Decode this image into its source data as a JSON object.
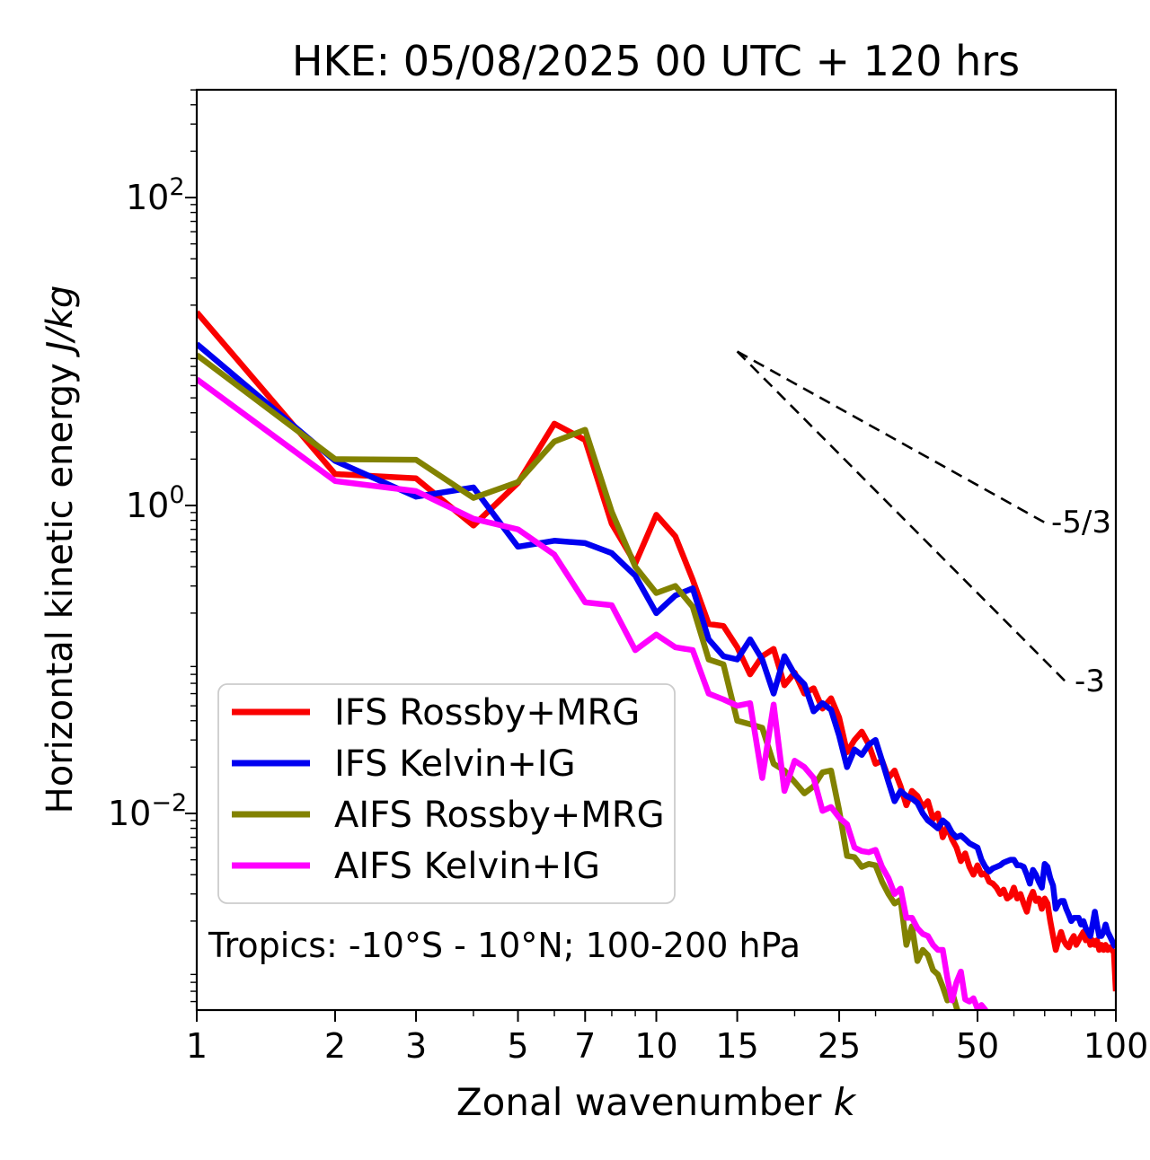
{
  "chart": {
    "title": "HKE: 05/08/2025 00 UTC + 120 hrs",
    "xlabel_text": "Zonal wavenumber ",
    "xlabel_var": "k",
    "ylabel_text": "Horizontal kinetic energy ",
    "ylabel_units": "J/kg",
    "annotation": "Tropics: -10°S - 10°N; 100-200 hPa"
  },
  "chart_data": {
    "type": "line",
    "x_scale": "log",
    "y_scale": "log",
    "xlim": [
      1,
      100
    ],
    "ylim": [
      0.00053,
      515
    ],
    "xlabel": "Zonal wavenumber k",
    "ylabel": "Horizontal kinetic energy J/kg",
    "grid": false,
    "legend_position": "lower left",
    "x_ticks": {
      "major": [
        1,
        2,
        3,
        5,
        7,
        10,
        15,
        25,
        50,
        100
      ],
      "major_labels": [
        "1",
        "2",
        "3",
        "5",
        "7",
        "10",
        "15",
        "25",
        "50",
        "100"
      ],
      "minor": [
        4,
        6,
        8,
        9,
        20,
        30,
        40,
        60,
        70,
        80,
        90
      ]
    },
    "y_ticks": {
      "major_exponents": [
        2,
        0,
        -2
      ],
      "minor_subs": [
        2,
        3,
        4,
        5,
        6,
        7,
        8,
        9
      ]
    },
    "reference_lines": [
      {
        "label": "-5/3",
        "k": [
          15,
          70
        ],
        "v": [
          10,
          0.775
        ]
      },
      {
        "label": "-3",
        "k": [
          15,
          78
        ],
        "v": [
          10,
          0.0711
        ]
      }
    ],
    "series": [
      {
        "name": "IFS Rossby+MRG",
        "color": "#fa0000",
        "k_from": 1,
        "values": [
          18,
          1.6,
          1.5,
          0.74,
          1.4,
          3.4,
          2.66,
          0.76,
          0.42,
          0.87,
          0.63,
          0.33,
          0.17,
          0.165,
          0.12,
          0.08,
          0.105,
          0.117,
          0.068,
          0.082,
          0.06,
          0.065,
          0.048,
          0.056,
          0.042,
          0.025,
          0.03,
          0.034,
          0.028,
          0.021,
          0.022,
          0.017,
          0.019,
          0.015,
          0.0113,
          0.014,
          0.013,
          0.011,
          0.012,
          0.0092,
          0.01,
          0.007,
          0.0082,
          0.0068,
          0.006,
          0.0049,
          0.0055,
          0.0045,
          0.004,
          0.0046,
          0.004,
          0.0041,
          0.0036,
          0.0035,
          0.0033,
          0.003,
          0.0032,
          0.0028,
          0.0029,
          0.0033,
          0.0028,
          0.003,
          0.0026,
          0.0023,
          0.0028,
          0.0031,
          0.0027,
          0.0028,
          0.0024,
          0.0028,
          0.0026,
          0.002,
          0.0016,
          0.0013,
          0.0015,
          0.0017,
          0.0015,
          0.0014,
          0.00135,
          0.0015,
          0.0016,
          0.0014,
          0.0015,
          0.0016,
          0.0017,
          0.0015,
          0.0016,
          0.0014,
          0.0015,
          0.0014,
          0.0015,
          0.0013,
          0.0014,
          0.0013,
          0.0014,
          0.0013,
          0.00135,
          0.0013,
          0.00125,
          0.0007
        ]
      },
      {
        "name": "IFS Kelvin+IG",
        "color": "#0000f0",
        "k_from": 1,
        "values": [
          11.2,
          1.95,
          1.14,
          1.31,
          0.54,
          0.59,
          0.57,
          0.49,
          0.35,
          0.2,
          0.26,
          0.29,
          0.135,
          0.105,
          0.1,
          0.135,
          0.1,
          0.06,
          0.105,
          0.08,
          0.069,
          0.046,
          0.052,
          0.047,
          0.032,
          0.02,
          0.026,
          0.024,
          0.028,
          0.03,
          0.022,
          0.016,
          0.012,
          0.014,
          0.013,
          0.0125,
          0.0117,
          0.01,
          0.009,
          0.0085,
          0.008,
          0.009,
          0.0085,
          0.0075,
          0.007,
          0.0072,
          0.0068,
          0.0064,
          0.0062,
          0.006,
          0.005,
          0.0045,
          0.0042,
          0.0044,
          0.0045,
          0.0046,
          0.0048,
          0.0049,
          0.005,
          0.005,
          0.0046,
          0.0046,
          0.0045,
          0.004,
          0.0035,
          0.0043,
          0.004,
          0.0036,
          0.0033,
          0.0047,
          0.0045,
          0.0038,
          0.0034,
          0.0024,
          0.0026,
          0.0027,
          0.0027,
          0.0024,
          0.0022,
          0.002,
          0.0021,
          0.0021,
          0.0021,
          0.0019,
          0.002,
          0.0018,
          0.0017,
          0.0016,
          0.0019,
          0.0023,
          0.0019,
          0.0016,
          0.0016,
          0.0017,
          0.0019,
          0.0017,
          0.0016,
          0.0015,
          0.0014,
          0.00135
        ]
      },
      {
        "name": "AIFS Rossby+MRG",
        "color": "#828200",
        "k_from": 1,
        "values": [
          9.5,
          2.0,
          1.98,
          1.12,
          1.42,
          2.6,
          3.1,
          0.91,
          0.4,
          0.27,
          0.3,
          0.22,
          0.1,
          0.093,
          0.04,
          0.038,
          0.036,
          0.021,
          0.019,
          0.016,
          0.0135,
          0.015,
          0.0185,
          0.019,
          0.0105,
          0.0053,
          0.0052,
          0.0045,
          0.0047,
          0.0046,
          0.0036,
          0.003,
          0.0026,
          0.00275,
          0.0014,
          0.00185,
          0.0011,
          0.0013,
          0.0012,
          0.00096,
          0.0009,
          0.00075,
          0.00061,
          0.0007,
          0.00055,
          0.00045
        ]
      },
      {
        "name": "AIFS Kelvin+IG",
        "color": "#ff00ff",
        "k_from": 1,
        "values": [
          6.6,
          1.44,
          1.24,
          0.82,
          0.7,
          0.48,
          0.235,
          0.225,
          0.115,
          0.145,
          0.12,
          0.115,
          0.06,
          0.055,
          0.05,
          0.052,
          0.017,
          0.051,
          0.014,
          0.022,
          0.02,
          0.017,
          0.0104,
          0.011,
          0.0094,
          0.0085,
          0.006,
          0.0057,
          0.0056,
          0.0058,
          0.0045,
          0.0038,
          0.003,
          0.00325,
          0.0021,
          0.0021,
          0.0018,
          0.00165,
          0.0016,
          0.0014,
          0.0013,
          0.0013,
          0.00085,
          0.00061,
          0.0008,
          0.00094,
          0.00062,
          0.0006,
          0.00063,
          0.00054,
          0.00057,
          0.00053,
          0.00045
        ]
      }
    ]
  }
}
